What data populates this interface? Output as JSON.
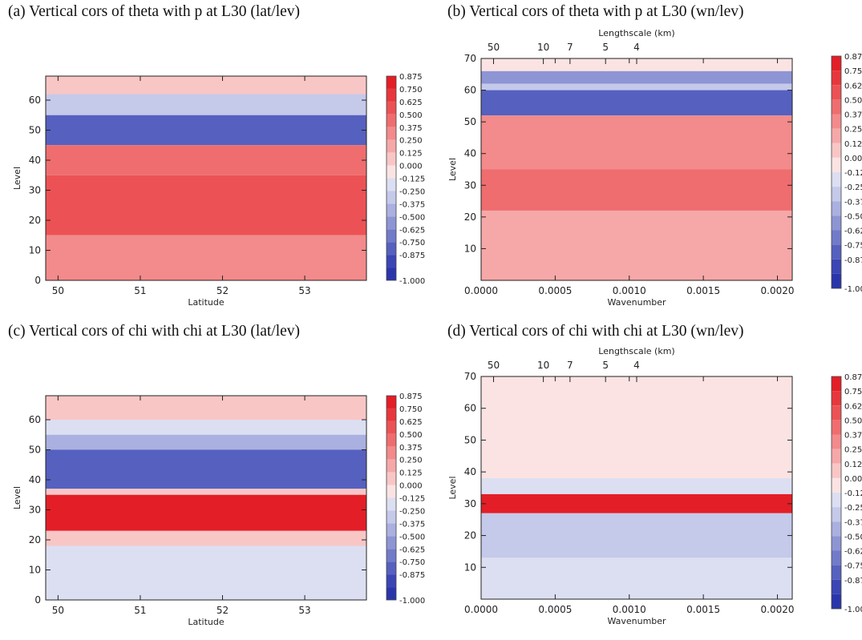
{
  "colorbar": {
    "levels": [
      "0.875",
      "0.750",
      "0.625",
      "0.500",
      "0.375",
      "0.250",
      "0.125",
      "0.000",
      "-0.125",
      "-0.250",
      "-0.375",
      "-0.500",
      "-0.625",
      "-0.750",
      "-0.875",
      "-1.000"
    ],
    "colors": [
      "#e41e26",
      "#e8373c",
      "#ec5255",
      "#ef6d6f",
      "#f38a8b",
      "#f6a8a8",
      "#f9c6c6",
      "#fbe3e3",
      "#dcdff2",
      "#c5c9ea",
      "#aab0df",
      "#8e95d4",
      "#727bc9",
      "#5660bf",
      "#3b45b4",
      "#2b35ab"
    ]
  },
  "chart_data": [
    {
      "id": "a",
      "type": "heatmap",
      "title": "(a) Vertical cors of theta with p at L30 (lat/lev)",
      "xlabel": "Latitude",
      "ylabel": "Level",
      "xlim": [
        49.85,
        53.75
      ],
      "ylim": [
        0,
        68
      ],
      "x_ticks": [
        "50",
        "51",
        "52",
        "53"
      ],
      "y_ticks": [
        "0",
        "10",
        "20",
        "30",
        "40",
        "50",
        "60"
      ],
      "bands": [
        {
          "level_from": 62,
          "level_to": 68,
          "value": 0.125
        },
        {
          "level_from": 55,
          "level_to": 62,
          "value": -0.25
        },
        {
          "level_from": 45,
          "level_to": 55,
          "value": -0.75
        },
        {
          "level_from": 35,
          "level_to": 45,
          "value": 0.5
        },
        {
          "level_from": 15,
          "level_to": 35,
          "value": 0.625
        },
        {
          "level_from": 0,
          "level_to": 15,
          "value": 0.375
        }
      ]
    },
    {
      "id": "b",
      "type": "heatmap",
      "title": "(b) Vertical cors of theta with p at L30 (wn/lev)",
      "xlabel": "Wavenumber",
      "ylabel": "Level",
      "top_axis_label": "Lengthscale (km)",
      "top_ticks": [
        "50",
        "10",
        "7",
        "5",
        "4"
      ],
      "xlim": [
        0.0,
        0.0021
      ],
      "ylim": [
        0,
        70
      ],
      "x_ticks": [
        "0.0000",
        "0.0005",
        "0.0010",
        "0.0015",
        "0.0020"
      ],
      "y_ticks": [
        "10",
        "20",
        "30",
        "40",
        "50",
        "60",
        "70"
      ],
      "bands": [
        {
          "level_from": 66,
          "level_to": 70,
          "value": 0.0
        },
        {
          "level_from": 62,
          "level_to": 66,
          "value": -0.5
        },
        {
          "level_from": 60,
          "level_to": 62,
          "value": -0.25
        },
        {
          "level_from": 52,
          "level_to": 60,
          "value": -0.75
        },
        {
          "level_from": 35,
          "level_to": 52,
          "value": 0.375
        },
        {
          "level_from": 22,
          "level_to": 35,
          "value": 0.5
        },
        {
          "level_from": 0,
          "level_to": 22,
          "value": 0.25
        }
      ]
    },
    {
      "id": "c",
      "type": "heatmap",
      "title": "(c) Vertical cors of chi with chi at L30 (lat/lev)",
      "xlabel": "Latitude",
      "ylabel": "Level",
      "xlim": [
        49.85,
        53.75
      ],
      "ylim": [
        0,
        68
      ],
      "x_ticks": [
        "50",
        "51",
        "52",
        "53"
      ],
      "y_ticks": [
        "0",
        "10",
        "20",
        "30",
        "40",
        "50",
        "60"
      ],
      "bands": [
        {
          "level_from": 60,
          "level_to": 68,
          "value": 0.125
        },
        {
          "level_from": 55,
          "level_to": 60,
          "value": -0.125
        },
        {
          "level_from": 50,
          "level_to": 55,
          "value": -0.375
        },
        {
          "level_from": 37,
          "level_to": 50,
          "value": -0.75
        },
        {
          "level_from": 35,
          "level_to": 37,
          "value": 0.125
        },
        {
          "level_from": 23,
          "level_to": 35,
          "value": 0.875
        },
        {
          "level_from": 18,
          "level_to": 23,
          "value": 0.125
        },
        {
          "level_from": 0,
          "level_to": 18,
          "value": -0.125
        }
      ]
    },
    {
      "id": "d",
      "type": "heatmap",
      "title": "(d) Vertical cors of chi with chi at L30 (wn/lev)",
      "xlabel": "Wavenumber",
      "ylabel": "Level",
      "top_axis_label": "Lengthscale (km)",
      "top_ticks": [
        "50",
        "10",
        "7",
        "5",
        "4"
      ],
      "xlim": [
        0.0,
        0.0021
      ],
      "ylim": [
        0,
        70
      ],
      "x_ticks": [
        "0.0000",
        "0.0005",
        "0.0010",
        "0.0015",
        "0.0020"
      ],
      "y_ticks": [
        "10",
        "20",
        "30",
        "40",
        "50",
        "60",
        "70"
      ],
      "bands": [
        {
          "level_from": 38,
          "level_to": 70,
          "value": 0.0
        },
        {
          "level_from": 33,
          "level_to": 38,
          "value": -0.125
        },
        {
          "level_from": 27,
          "level_to": 33,
          "value": 0.875
        },
        {
          "level_from": 13,
          "level_to": 27,
          "value": -0.25
        },
        {
          "level_from": 0,
          "level_to": 13,
          "value": -0.125
        }
      ]
    }
  ]
}
